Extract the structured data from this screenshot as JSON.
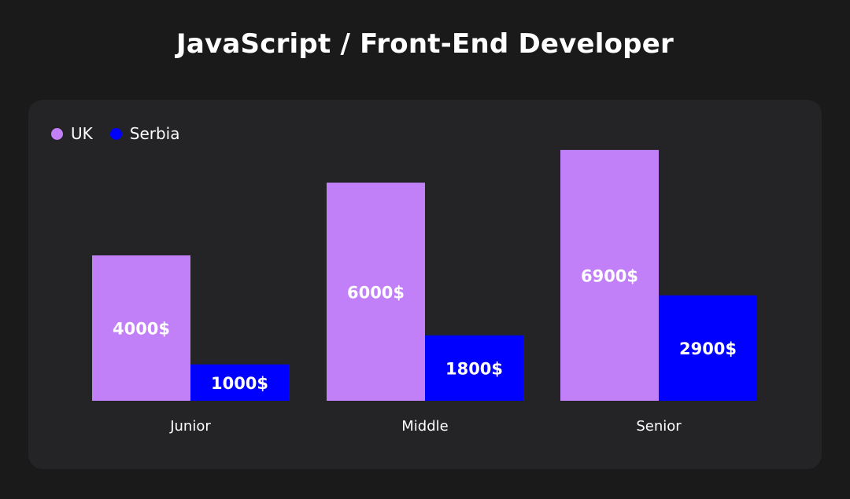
{
  "title": "JavaScript / Front-End Developer",
  "colors": {
    "uk": "#c17ff8",
    "serbia": "#0000ff"
  },
  "chart_data": {
    "type": "bar",
    "title": "JavaScript / Front-End Developer",
    "categories": [
      "Junior",
      "Middle",
      "Senior"
    ],
    "series": [
      {
        "name": "UK",
        "values": [
          4000,
          6000,
          6900
        ],
        "labels": [
          "4000$",
          "6000$",
          "6900$"
        ]
      },
      {
        "name": "Serbia",
        "values": [
          1000,
          1800,
          2900
        ],
        "labels": [
          "1000$",
          "1800$",
          "2900$"
        ]
      }
    ],
    "legend": "top-left",
    "grid": false
  }
}
